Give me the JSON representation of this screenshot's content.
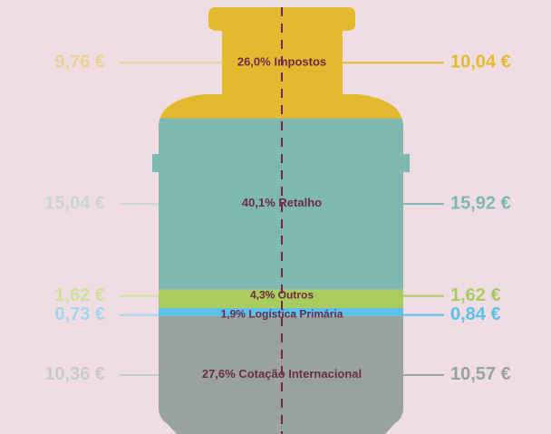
{
  "chart_data": {
    "type": "cylinder",
    "categories": [
      "Impostos",
      "Retalho",
      "Outros",
      "Logística Primária",
      "Cotação Internacional"
    ],
    "values": [
      26.0,
      40.1,
      4.3,
      1.9,
      27.6
    ],
    "value_labels": [
      "26,0%",
      "40,1%",
      "4,3%",
      "1,9%",
      "27,6%"
    ],
    "colors": [
      "#e2b92f",
      "#7fb7b1",
      "#a9cc5c",
      "#5bc1ea",
      "#9aa29e"
    ],
    "series": [
      {
        "values": [
          9.76,
          15.04,
          1.62,
          0.73,
          10.36
        ],
        "value_labels": [
          "9,76 €",
          "15,04 €",
          "1,62 €",
          "0,73 €",
          "10,36 €"
        ],
        "colors": [
          "#e8d396",
          "#c9d5d5",
          "#cfe09c",
          "#a3d6ee",
          "#c8cbca"
        ]
      },
      {
        "values": [
          10.04,
          15.92,
          1.62,
          0.84,
          10.57
        ],
        "value_labels": [
          "10,04 €",
          "15,92 €",
          "1,62 €",
          "0,84 €",
          "10,57 €"
        ],
        "colors": [
          "#e2b92f",
          "#7fb7b1",
          "#a9cc5c",
          "#5bc1ea",
          "#9aa29e"
        ]
      }
    ]
  }
}
